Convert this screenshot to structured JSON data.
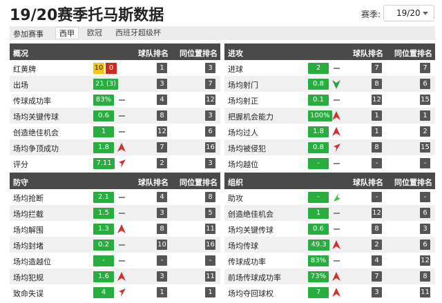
{
  "title": "19/20赛季托马斯数据",
  "season": {
    "label": "赛季:",
    "value": "19/20"
  },
  "competitions": {
    "label": "参加赛事",
    "tabs": [
      {
        "label": "西甲",
        "active": true
      },
      {
        "label": "欧冠",
        "active": false
      },
      {
        "label": "西班牙超级杯",
        "active": false
      }
    ]
  },
  "colors": {
    "good": "#27ae3e",
    "up": "#d32f2f",
    "down": "#2ea043",
    "neutral": "#888888",
    "header": "#4a4a4a",
    "yellow_card": "#f7c70a",
    "red_card": "#d0281c"
  },
  "panels": {
    "overview": {
      "title": "概况",
      "col_team": "球队排名",
      "col_pos": "同位置排名",
      "rows": [
        {
          "label": "红黄牌",
          "yellow": "10",
          "red": "0",
          "team_rank": "1",
          "pos_rank": "3"
        },
        {
          "label": "出场",
          "value": "21 (3)",
          "trend": "none",
          "team_rank": "3",
          "pos_rank": "7"
        },
        {
          "label": "传球成功率",
          "value": "83%",
          "trend": "flat",
          "team_rank": "4",
          "pos_rank": "12"
        },
        {
          "label": "场均关键传球",
          "value": "0.6",
          "trend": "flat",
          "team_rank": "8",
          "pos_rank": "3"
        },
        {
          "label": "创造绝佳机会",
          "value": "1",
          "trend": "flat",
          "team_rank": "12",
          "pos_rank": "6"
        },
        {
          "label": "场均争顶成功",
          "value": "1.8",
          "trend": "up",
          "team_rank": "7",
          "pos_rank": "16"
        },
        {
          "label": "评分",
          "value": "7.11",
          "trend": "up-right",
          "team_rank": "2",
          "pos_rank": "3"
        }
      ]
    },
    "attack": {
      "title": "进攻",
      "col_team": "球队排名",
      "col_pos": "同位置排名",
      "rows": [
        {
          "label": "进球",
          "value": "2",
          "trend": "flat",
          "team_rank": "7",
          "pos_rank": "7"
        },
        {
          "label": "场均射门",
          "value": "0.8",
          "trend": "down",
          "team_rank": "8",
          "pos_rank": "6"
        },
        {
          "label": "场均射正",
          "value": "0.1",
          "trend": "flat",
          "team_rank": "12",
          "pos_rank": "15"
        },
        {
          "label": "把握机会能力",
          "value": "100%",
          "trend": "up",
          "team_rank": "1",
          "pos_rank": "1"
        },
        {
          "label": "场均过人",
          "value": "1.8",
          "trend": "up",
          "team_rank": "1",
          "pos_rank": "2"
        },
        {
          "label": "场均被侵犯",
          "value": "0.8",
          "trend": "up-right",
          "team_rank": "8",
          "pos_rank": "15"
        },
        {
          "label": "场均越位",
          "value": "-",
          "trend": "flat",
          "team_rank": "-",
          "pos_rank": "-"
        }
      ]
    },
    "defense": {
      "title": "防守",
      "col_team": "球队排名",
      "col_pos": "同位置排名",
      "rows": [
        {
          "label": "场均抢断",
          "value": "2.1",
          "trend": "flat",
          "team_rank": "4",
          "pos_rank": "8"
        },
        {
          "label": "场均拦截",
          "value": "1.5",
          "trend": "flat",
          "team_rank": "3",
          "pos_rank": "5"
        },
        {
          "label": "场均解围",
          "value": "1.3",
          "trend": "up",
          "team_rank": "8",
          "pos_rank": "11"
        },
        {
          "label": "场均封堵",
          "value": "0.2",
          "trend": "flat",
          "team_rank": "10",
          "pos_rank": "16"
        },
        {
          "label": "场均造越位",
          "value": "-",
          "trend": "flat",
          "team_rank": "-",
          "pos_rank": "-"
        },
        {
          "label": "场均犯规",
          "value": "1.6",
          "trend": "up",
          "team_rank": "3",
          "pos_rank": "11"
        },
        {
          "label": "致命失误",
          "value": "4",
          "trend": "up-right",
          "team_rank": "1",
          "pos_rank": "1"
        }
      ]
    },
    "organize": {
      "title": "组织",
      "col_team": "球队排名",
      "col_pos": "同位置排名",
      "rows": [
        {
          "label": "助攻",
          "value": "-",
          "trend": "down-left",
          "team_rank": "-",
          "pos_rank": "-"
        },
        {
          "label": "创造绝佳机会",
          "value": "1",
          "trend": "flat",
          "team_rank": "12",
          "pos_rank": "6"
        },
        {
          "label": "场均关键传球",
          "value": "0.6",
          "trend": "flat",
          "team_rank": "8",
          "pos_rank": "3"
        },
        {
          "label": "场均传球",
          "value": "49.3",
          "trend": "up",
          "team_rank": "2",
          "pos_rank": "6"
        },
        {
          "label": "传球成功率",
          "value": "83%",
          "trend": "flat",
          "team_rank": "4",
          "pos_rank": "12"
        },
        {
          "label": "前场传球成功率",
          "value": "73%",
          "trend": "up",
          "team_rank": "7",
          "pos_rank": "8"
        },
        {
          "label": "场均夺回球权",
          "value": "7",
          "trend": "up",
          "team_rank": "3",
          "pos_rank": "11"
        }
      ]
    }
  }
}
